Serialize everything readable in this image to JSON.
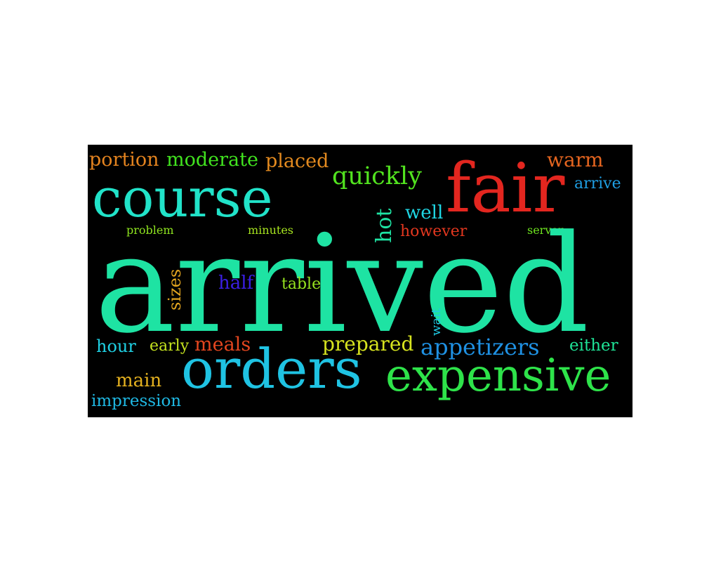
{
  "words": {
    "arrived": {
      "text": "arrived",
      "color": "#1ee3a3"
    },
    "orders": {
      "text": "orders",
      "color": "#1fc3e3"
    },
    "expensive": {
      "text": "expensive",
      "color": "#2ee34a"
    },
    "fair": {
      "text": "fair",
      "color": "#e3261f"
    },
    "course": {
      "text": "course",
      "color": "#21e3c9"
    },
    "quickly": {
      "text": "quickly",
      "color": "#52e31f"
    },
    "hot": {
      "text": "hot",
      "color": "#1ee3a3"
    },
    "well": {
      "text": "well",
      "color": "#1fd6e3"
    },
    "however": {
      "text": "however",
      "color": "#e3371f"
    },
    "warm": {
      "text": "warm",
      "color": "#e3641f"
    },
    "arrive": {
      "text": "arrive",
      "color": "#1f9fe3"
    },
    "server": {
      "text": "server",
      "color": "#6ee31f"
    },
    "portion": {
      "text": "portion",
      "color": "#e3831f"
    },
    "moderate": {
      "text": "moderate",
      "color": "#41e31f"
    },
    "placed": {
      "text": "placed",
      "color": "#e38a1f"
    },
    "problem": {
      "text": "problem",
      "color": "#8ee31f"
    },
    "minutes": {
      "text": "minutes",
      "color": "#a6e31f"
    },
    "sizes": {
      "text": "sizes",
      "color": "#e3a51f"
    },
    "half": {
      "text": "half",
      "color": "#3a1fe3"
    },
    "table": {
      "text": "table",
      "color": "#96e31f"
    },
    "wait": {
      "text": "wait",
      "color": "#1fc9e3"
    },
    "hour": {
      "text": "hour",
      "color": "#1fd0e3"
    },
    "early": {
      "text": "early",
      "color": "#c5e31f"
    },
    "meals": {
      "text": "meals",
      "color": "#e3461f"
    },
    "prepared": {
      "text": "prepared",
      "color": "#d6e31f"
    },
    "appetizers": {
      "text": "appetizers",
      "color": "#1f91e3"
    },
    "either": {
      "text": "either",
      "color": "#1fe397"
    },
    "main": {
      "text": "main",
      "color": "#e3b01f"
    },
    "impression": {
      "text": "impression",
      "color": "#1fb8e3"
    }
  }
}
